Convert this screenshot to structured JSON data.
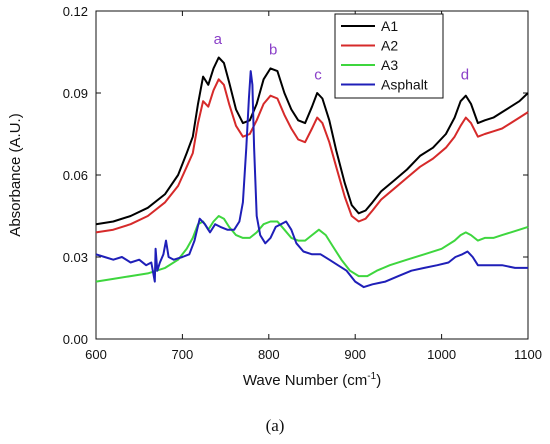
{
  "caption": "(a)",
  "chart_data": {
    "type": "line",
    "xlabel": "Wave Number (cm",
    "xlabel_sup": "-1",
    "xlabel_end": ")",
    "ylabel": "Absorbance (A.U.)",
    "xlim": [
      600,
      1100
    ],
    "ylim": [
      0.0,
      0.12
    ],
    "x_ticks": [
      "600",
      "700",
      "800",
      "900",
      "1000",
      "1100"
    ],
    "y_ticks": [
      "0.00",
      "0.03",
      "0.06",
      "0.09",
      "0.12"
    ],
    "grid": false,
    "legend_position": "top-right",
    "peak_labels": [
      {
        "text": "a",
        "x": 741,
        "y": 0.108
      },
      {
        "text": "b",
        "x": 805,
        "y": 0.104
      },
      {
        "text": "c",
        "x": 857,
        "y": 0.095
      },
      {
        "text": "d",
        "x": 1027,
        "y": 0.095
      }
    ],
    "series": [
      {
        "name": "A1",
        "color": "#000000",
        "points": [
          [
            600,
            0.042
          ],
          [
            620,
            0.043
          ],
          [
            640,
            0.045
          ],
          [
            660,
            0.048
          ],
          [
            680,
            0.053
          ],
          [
            695,
            0.06
          ],
          [
            705,
            0.068
          ],
          [
            712,
            0.074
          ],
          [
            718,
            0.086
          ],
          [
            724,
            0.096
          ],
          [
            730,
            0.093
          ],
          [
            736,
            0.099
          ],
          [
            742,
            0.103
          ],
          [
            748,
            0.101
          ],
          [
            754,
            0.094
          ],
          [
            762,
            0.084
          ],
          [
            770,
            0.079
          ],
          [
            778,
            0.08
          ],
          [
            786,
            0.086
          ],
          [
            794,
            0.095
          ],
          [
            802,
            0.099
          ],
          [
            810,
            0.098
          ],
          [
            818,
            0.09
          ],
          [
            826,
            0.084
          ],
          [
            834,
            0.08
          ],
          [
            842,
            0.079
          ],
          [
            850,
            0.085
          ],
          [
            856,
            0.09
          ],
          [
            862,
            0.088
          ],
          [
            870,
            0.08
          ],
          [
            878,
            0.069
          ],
          [
            888,
            0.057
          ],
          [
            896,
            0.049
          ],
          [
            904,
            0.046
          ],
          [
            912,
            0.047
          ],
          [
            920,
            0.05
          ],
          [
            930,
            0.054
          ],
          [
            945,
            0.058
          ],
          [
            960,
            0.062
          ],
          [
            975,
            0.067
          ],
          [
            990,
            0.07
          ],
          [
            1005,
            0.075
          ],
          [
            1015,
            0.081
          ],
          [
            1022,
            0.087
          ],
          [
            1028,
            0.089
          ],
          [
            1034,
            0.086
          ],
          [
            1042,
            0.079
          ],
          [
            1050,
            0.08
          ],
          [
            1060,
            0.081
          ],
          [
            1070,
            0.083
          ],
          [
            1080,
            0.085
          ],
          [
            1090,
            0.087
          ],
          [
            1100,
            0.09
          ]
        ]
      },
      {
        "name": "A2",
        "color": "#d62a2a",
        "points": [
          [
            600,
            0.039
          ],
          [
            620,
            0.04
          ],
          [
            640,
            0.042
          ],
          [
            660,
            0.045
          ],
          [
            680,
            0.05
          ],
          [
            695,
            0.056
          ],
          [
            705,
            0.063
          ],
          [
            712,
            0.068
          ],
          [
            718,
            0.079
          ],
          [
            724,
            0.087
          ],
          [
            730,
            0.085
          ],
          [
            736,
            0.091
          ],
          [
            742,
            0.095
          ],
          [
            748,
            0.093
          ],
          [
            754,
            0.086
          ],
          [
            762,
            0.078
          ],
          [
            770,
            0.074
          ],
          [
            778,
            0.075
          ],
          [
            786,
            0.08
          ],
          [
            794,
            0.086
          ],
          [
            802,
            0.089
          ],
          [
            810,
            0.088
          ],
          [
            818,
            0.082
          ],
          [
            826,
            0.077
          ],
          [
            834,
            0.073
          ],
          [
            842,
            0.072
          ],
          [
            850,
            0.077
          ],
          [
            856,
            0.081
          ],
          [
            862,
            0.079
          ],
          [
            870,
            0.072
          ],
          [
            878,
            0.063
          ],
          [
            888,
            0.052
          ],
          [
            896,
            0.045
          ],
          [
            904,
            0.043
          ],
          [
            912,
            0.044
          ],
          [
            920,
            0.047
          ],
          [
            930,
            0.051
          ],
          [
            945,
            0.055
          ],
          [
            960,
            0.059
          ],
          [
            975,
            0.063
          ],
          [
            990,
            0.066
          ],
          [
            1005,
            0.07
          ],
          [
            1015,
            0.074
          ],
          [
            1022,
            0.078
          ],
          [
            1028,
            0.081
          ],
          [
            1034,
            0.079
          ],
          [
            1042,
            0.074
          ],
          [
            1050,
            0.075
          ],
          [
            1060,
            0.076
          ],
          [
            1070,
            0.077
          ],
          [
            1080,
            0.079
          ],
          [
            1090,
            0.081
          ],
          [
            1100,
            0.083
          ]
        ]
      },
      {
        "name": "A3",
        "color": "#3ed63e",
        "points": [
          [
            600,
            0.021
          ],
          [
            620,
            0.022
          ],
          [
            640,
            0.023
          ],
          [
            660,
            0.024
          ],
          [
            680,
            0.026
          ],
          [
            695,
            0.029
          ],
          [
            705,
            0.033
          ],
          [
            712,
            0.037
          ],
          [
            718,
            0.042
          ],
          [
            724,
            0.043
          ],
          [
            730,
            0.04
          ],
          [
            736,
            0.043
          ],
          [
            742,
            0.045
          ],
          [
            748,
            0.044
          ],
          [
            754,
            0.041
          ],
          [
            762,
            0.038
          ],
          [
            770,
            0.037
          ],
          [
            778,
            0.037
          ],
          [
            786,
            0.039
          ],
          [
            794,
            0.042
          ],
          [
            802,
            0.043
          ],
          [
            810,
            0.043
          ],
          [
            818,
            0.04
          ],
          [
            826,
            0.037
          ],
          [
            834,
            0.036
          ],
          [
            842,
            0.036
          ],
          [
            850,
            0.038
          ],
          [
            858,
            0.04
          ],
          [
            866,
            0.038
          ],
          [
            874,
            0.034
          ],
          [
            884,
            0.029
          ],
          [
            894,
            0.025
          ],
          [
            904,
            0.023
          ],
          [
            914,
            0.023
          ],
          [
            925,
            0.025
          ],
          [
            940,
            0.027
          ],
          [
            960,
            0.029
          ],
          [
            980,
            0.031
          ],
          [
            1000,
            0.033
          ],
          [
            1015,
            0.036
          ],
          [
            1022,
            0.038
          ],
          [
            1028,
            0.039
          ],
          [
            1034,
            0.038
          ],
          [
            1042,
            0.036
          ],
          [
            1050,
            0.037
          ],
          [
            1060,
            0.037
          ],
          [
            1070,
            0.038
          ],
          [
            1080,
            0.039
          ],
          [
            1090,
            0.04
          ],
          [
            1100,
            0.041
          ]
        ]
      },
      {
        "name": "Asphalt",
        "color": "#1f1fb8",
        "points": [
          [
            600,
            0.031
          ],
          [
            610,
            0.03
          ],
          [
            620,
            0.029
          ],
          [
            630,
            0.03
          ],
          [
            640,
            0.028
          ],
          [
            650,
            0.029
          ],
          [
            658,
            0.027
          ],
          [
            664,
            0.028
          ],
          [
            668,
            0.021
          ],
          [
            669,
            0.033
          ],
          [
            671,
            0.025
          ],
          [
            674,
            0.028
          ],
          [
            678,
            0.031
          ],
          [
            681,
            0.036
          ],
          [
            684,
            0.03
          ],
          [
            690,
            0.029
          ],
          [
            700,
            0.03
          ],
          [
            708,
            0.031
          ],
          [
            714,
            0.036
          ],
          [
            720,
            0.044
          ],
          [
            726,
            0.042
          ],
          [
            732,
            0.039
          ],
          [
            738,
            0.042
          ],
          [
            744,
            0.041
          ],
          [
            752,
            0.04
          ],
          [
            760,
            0.04
          ],
          [
            766,
            0.043
          ],
          [
            770,
            0.05
          ],
          [
            774,
            0.07
          ],
          [
            777,
            0.088
          ],
          [
            779,
            0.098
          ],
          [
            781,
            0.093
          ],
          [
            783,
            0.07
          ],
          [
            786,
            0.045
          ],
          [
            790,
            0.038
          ],
          [
            796,
            0.035
          ],
          [
            802,
            0.037
          ],
          [
            808,
            0.041
          ],
          [
            814,
            0.042
          ],
          [
            820,
            0.043
          ],
          [
            826,
            0.04
          ],
          [
            832,
            0.035
          ],
          [
            840,
            0.032
          ],
          [
            850,
            0.031
          ],
          [
            860,
            0.031
          ],
          [
            870,
            0.029
          ],
          [
            880,
            0.027
          ],
          [
            890,
            0.025
          ],
          [
            900,
            0.021
          ],
          [
            910,
            0.019
          ],
          [
            920,
            0.02
          ],
          [
            935,
            0.021
          ],
          [
            950,
            0.023
          ],
          [
            965,
            0.025
          ],
          [
            980,
            0.026
          ],
          [
            995,
            0.027
          ],
          [
            1008,
            0.028
          ],
          [
            1016,
            0.03
          ],
          [
            1024,
            0.031
          ],
          [
            1030,
            0.032
          ],
          [
            1036,
            0.03
          ],
          [
            1042,
            0.027
          ],
          [
            1055,
            0.027
          ],
          [
            1070,
            0.027
          ],
          [
            1085,
            0.026
          ],
          [
            1100,
            0.026
          ]
        ]
      }
    ]
  }
}
